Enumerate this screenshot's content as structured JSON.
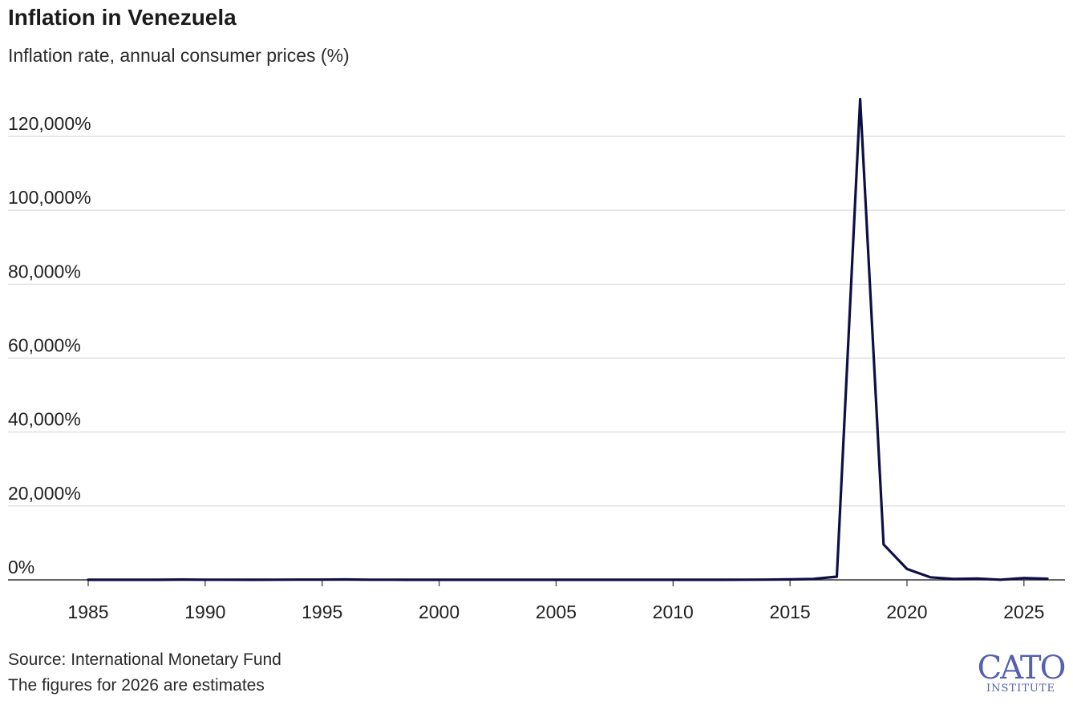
{
  "chart_data": {
    "type": "line",
    "title": "Inflation in Venezuela",
    "subtitle": "Inflation rate, annual consumer prices (%)",
    "xlabel": "",
    "ylabel": "",
    "xlim": [
      1985,
      2026
    ],
    "ylim": [
      0,
      120000
    ],
    "x_ticks": [
      1985,
      1990,
      1995,
      2000,
      2005,
      2010,
      2015,
      2020,
      2025
    ],
    "y_ticks": [
      0,
      20000,
      40000,
      60000,
      80000,
      100000,
      120000
    ],
    "y_tick_labels": [
      "0%",
      "20,000%",
      "40,000%",
      "60,000%",
      "80,000%",
      "100,000%",
      "120,000%"
    ],
    "grid": "horizontal",
    "legend": "none",
    "series": [
      {
        "color": "#0f0f45",
        "x": [
          1985,
          1986,
          1987,
          1988,
          1989,
          1990,
          1991,
          1992,
          1993,
          1994,
          1995,
          1996,
          1997,
          1998,
          1999,
          2000,
          2001,
          2002,
          2003,
          2004,
          2005,
          2006,
          2007,
          2008,
          2009,
          2010,
          2011,
          2012,
          2013,
          2014,
          2015,
          2016,
          2017,
          2018,
          2019,
          2020,
          2021,
          2022,
          2023,
          2024,
          2025,
          2026
        ],
        "y": [
          11,
          12,
          28,
          29,
          84,
          40,
          34,
          31,
          38,
          61,
          60,
          100,
          50,
          36,
          24,
          16,
          13,
          22,
          31,
          22,
          16,
          14,
          19,
          31,
          27,
          28,
          26,
          21,
          41,
          63,
          122,
          255,
          862,
          130060,
          9586,
          2960,
          686,
          234,
          360,
          48,
          500,
          300
        ]
      }
    ]
  },
  "footer": {
    "source": "Source: International Monetary Fund",
    "note": "The figures for 2026 are estimates"
  },
  "logo": {
    "main": "CATO",
    "sub": "INSTITUTE"
  }
}
